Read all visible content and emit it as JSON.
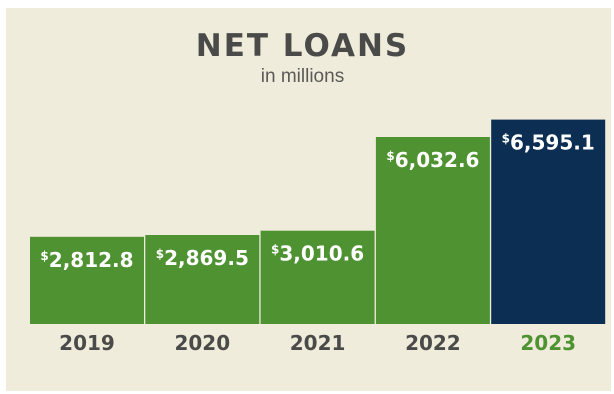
{
  "chart_data": {
    "type": "bar",
    "title": "NET LOANS",
    "subtitle": "in millions",
    "categories": [
      "2019",
      "2020",
      "2021",
      "2022",
      "2023"
    ],
    "values": [
      2812.8,
      2869.5,
      3010.6,
      6032.6,
      6595.1
    ],
    "value_labels": [
      "2,812.8",
      "2,869.5",
      "3,010.6",
      "6,032.6",
      "6,595.1"
    ],
    "currency_symbol": "$",
    "highlight_index": 4,
    "colors": {
      "bar": "#4e9232",
      "highlight_bar": "#0b2e52",
      "category_text": "#4a4a48",
      "highlight_category_text": "#4e9232",
      "background": "#f0ecdb"
    }
  }
}
